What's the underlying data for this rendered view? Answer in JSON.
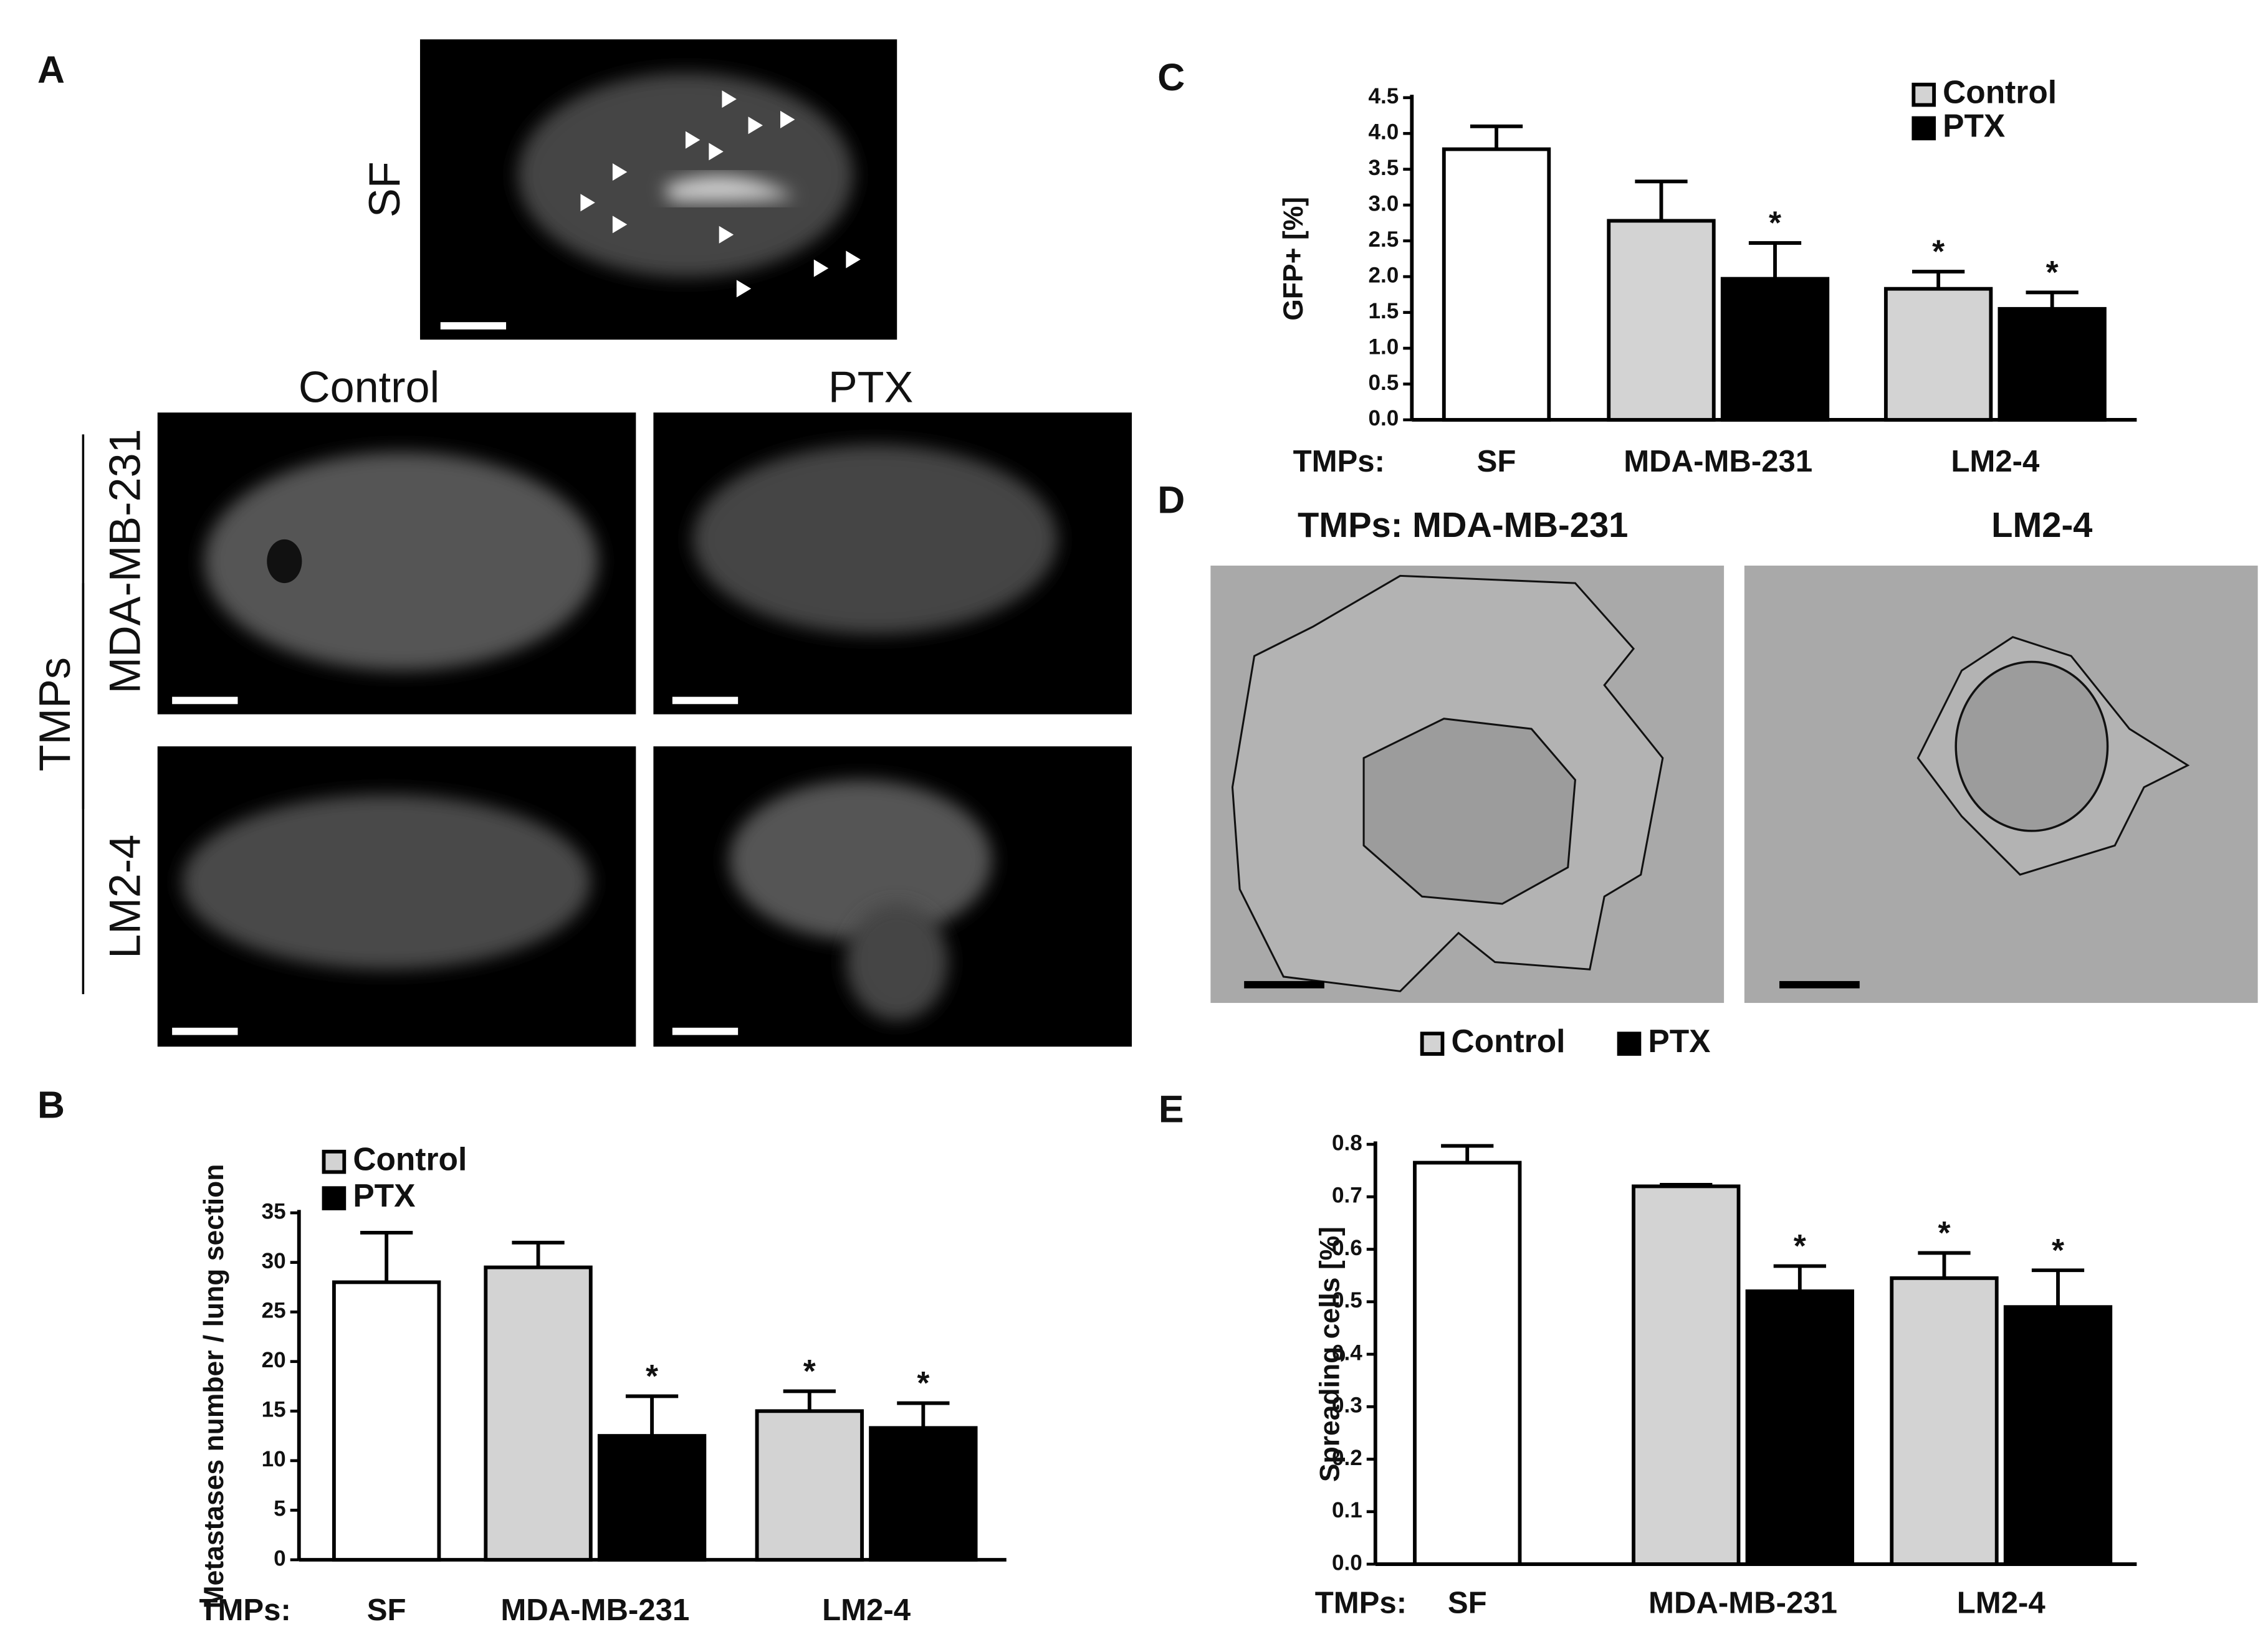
{
  "figure": {
    "labels": [
      "A",
      "B",
      "C",
      "D",
      "E"
    ],
    "panel_a": {
      "top_label": "SF",
      "columns": [
        "Control",
        "PTX"
      ],
      "rows": [
        "MDA-MB-231",
        "LM2-4"
      ],
      "group": "TMPs"
    },
    "panel_d": {
      "titles": [
        "TMPs: MDA-MB-231",
        "LM2-4"
      ]
    }
  },
  "chart_data": [
    {
      "type": "bar",
      "y_label": "Metastases number / lung section",
      "x_label": "TMPs:",
      "categories": [
        "SF",
        "MDA-MB-231",
        "LM2-4"
      ],
      "series": [
        {
          "name": "Control",
          "color": "#d3d3d3",
          "colors": [
            "#ffffff",
            "#d3d3d3",
            "#d3d3d3"
          ],
          "values": [
            28,
            29.5,
            15
          ],
          "errors": [
            5,
            2.5,
            2
          ],
          "annotations": [
            null,
            null,
            "*"
          ]
        },
        {
          "name": "PTX",
          "color": "#000000",
          "colors": [
            null,
            "#000000",
            "#000000"
          ],
          "values": [
            null,
            12.5,
            13.3
          ],
          "errors": [
            null,
            4,
            2.5
          ],
          "annotations": [
            null,
            "*",
            "*"
          ]
        }
      ],
      "ylim": [
        0,
        35
      ],
      "yticks": [
        0,
        5,
        10,
        15,
        20,
        25,
        30,
        35
      ]
    },
    {
      "type": "bar",
      "y_label": "GFP+ [%]",
      "x_label": "TMPs:",
      "categories": [
        "SF",
        "MDA-MB-231",
        "LM2-4"
      ],
      "series": [
        {
          "name": "Control",
          "color": "#d3d3d3",
          "colors": [
            "#ffffff",
            "#d3d3d3",
            "#d3d3d3"
          ],
          "values": [
            3.78,
            2.78,
            1.83
          ],
          "errors": [
            0.32,
            0.55,
            0.24
          ],
          "annotations": [
            null,
            null,
            "*"
          ]
        },
        {
          "name": "PTX",
          "color": "#000000",
          "colors": [
            null,
            "#000000",
            "#000000"
          ],
          "values": [
            null,
            1.97,
            1.55
          ],
          "errors": [
            null,
            0.5,
            0.23
          ],
          "annotations": [
            null,
            "*",
            "*"
          ]
        }
      ],
      "ylim": [
        0,
        4.5
      ],
      "yticks": [
        {
          "value": 0,
          "label": "0.0"
        },
        0.5,
        {
          "value": 1,
          "label": "1.0"
        },
        1.5,
        {
          "value": 2,
          "label": "2.0"
        },
        2.5,
        {
          "value": 3,
          "label": "3.0"
        },
        3.5,
        {
          "value": 4,
          "label": "4.0"
        },
        4.5
      ]
    },
    {
      "type": "bar",
      "y_label": "Spreading cells [%]",
      "x_label": "TMPs:",
      "categories": [
        "SF",
        "MDA-MB-231",
        "LM2-4"
      ],
      "series": [
        {
          "name": "Control",
          "color": "#d3d3d3",
          "colors": [
            "#ffffff",
            "#d3d3d3",
            "#d3d3d3"
          ],
          "values": [
            0.765,
            0.72,
            0.545
          ],
          "errors": [
            0.032,
            0.003,
            0.048
          ],
          "annotations": [
            null,
            null,
            "*"
          ]
        },
        {
          "name": "PTX",
          "color": "#000000",
          "colors": [
            null,
            "#000000",
            "#000000"
          ],
          "values": [
            null,
            0.52,
            0.49
          ],
          "errors": [
            null,
            0.048,
            0.07
          ],
          "annotations": [
            null,
            "*",
            "*"
          ]
        }
      ],
      "ylim": [
        0,
        0.8
      ],
      "yticks": [
        {
          "value": 0,
          "label": "0.0"
        },
        0.1,
        0.2,
        0.3,
        0.4,
        0.5,
        0.6,
        0.7,
        0.8
      ]
    }
  ]
}
